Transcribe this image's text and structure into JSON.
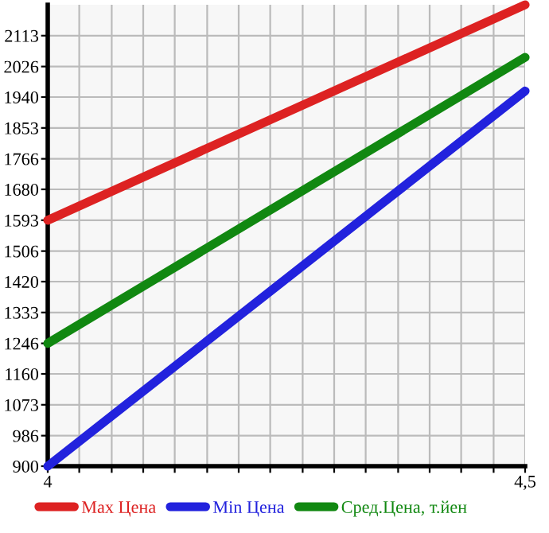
{
  "chart_data": {
    "type": "line",
    "x": [
      4,
      4.5
    ],
    "series": [
      {
        "name": "Max Цена",
        "color": "#dd2222",
        "values": [
          1593,
          2200
        ]
      },
      {
        "name": "Min Цена",
        "color": "#2222dd",
        "values": [
          900,
          1957
        ]
      },
      {
        "name": "Сред.Цена, т.йен",
        "color": "#118811",
        "values": [
          1246,
          2052
        ]
      }
    ],
    "xlim": [
      4,
      4.5
    ],
    "xticks": [
      {
        "value": 4,
        "label": "4"
      },
      {
        "value": 4.033,
        "label": null
      },
      {
        "value": 4.067,
        "label": null
      },
      {
        "value": 4.1,
        "label": null
      },
      {
        "value": 4.133,
        "label": null
      },
      {
        "value": 4.167,
        "label": null
      },
      {
        "value": 4.2,
        "label": null
      },
      {
        "value": 4.233,
        "label": null
      },
      {
        "value": 4.267,
        "label": null
      },
      {
        "value": 4.3,
        "label": null
      },
      {
        "value": 4.333,
        "label": null
      },
      {
        "value": 4.367,
        "label": null
      },
      {
        "value": 4.4,
        "label": null
      },
      {
        "value": 4.433,
        "label": null
      },
      {
        "value": 4.467,
        "label": null
      },
      {
        "value": 4.5,
        "label": "4,5"
      }
    ],
    "ylim": [
      900,
      2200
    ],
    "yticks": [
      900,
      986,
      1073,
      1160,
      1246,
      1333,
      1420,
      1506,
      1593,
      1680,
      1766,
      1853,
      1940,
      2026,
      2113
    ],
    "grid": true,
    "legend": "bottom",
    "marker": "none",
    "line_style": "solid"
  }
}
